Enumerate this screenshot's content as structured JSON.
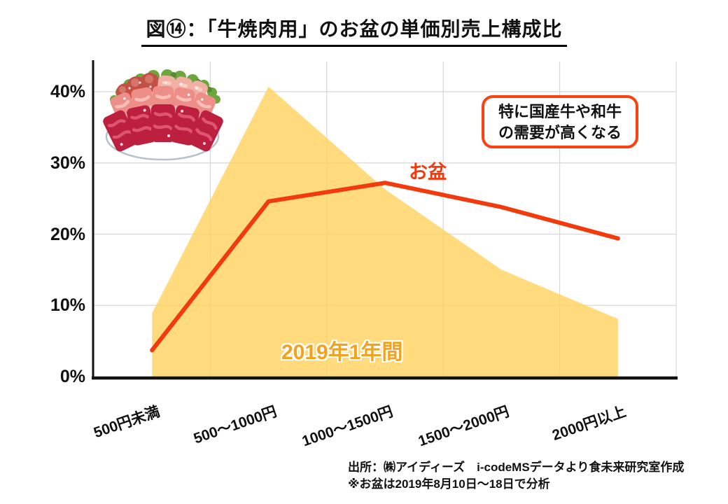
{
  "title": "図⑭：「牛焼肉用」のお盆の単価別売上構成比",
  "annotation": {
    "line1": "特に国産牛や和牛",
    "line2": "の需要が高くなる"
  },
  "source": {
    "line1": "出所：㈱アイディーズ　i-codeMSデータより食未来研究室作成",
    "line2": "※お盆は2019年8月10日～18日で分析"
  },
  "icons": {
    "plate_illustration": "yakiniku-plate-icon"
  },
  "colors": {
    "area_fill": "#FFD25E",
    "line": "#F23A0C",
    "annotation_border": "#FA4112",
    "year_label": "#F2A21C",
    "grid": "#D8D8D8",
    "axis": "#111111"
  },
  "chart_data": {
    "type": "area+line",
    "title": "図⑭：「牛焼肉用」のお盆の単価別売上構成比",
    "categories": [
      "500円未満",
      "500～1000円",
      "1000～1500円",
      "1500～2000円",
      "2000円以上"
    ],
    "y_tick_labels": [
      "0%",
      "10%",
      "20%",
      "30%",
      "40%"
    ],
    "y_tick_values": [
      0,
      10,
      20,
      30,
      40
    ],
    "ylim": [
      0,
      44
    ],
    "grid": true,
    "legend": "inline-labels",
    "series": [
      {
        "name": "2019年1年間",
        "type": "area",
        "color": "#FFD25E",
        "values": [
          8.9,
          40.7,
          26.3,
          15.0,
          8.1
        ]
      },
      {
        "name": "お盆",
        "type": "line",
        "color": "#F23A0C",
        "values": [
          3.7,
          24.6,
          27.2,
          23.8,
          19.4
        ]
      }
    ]
  }
}
